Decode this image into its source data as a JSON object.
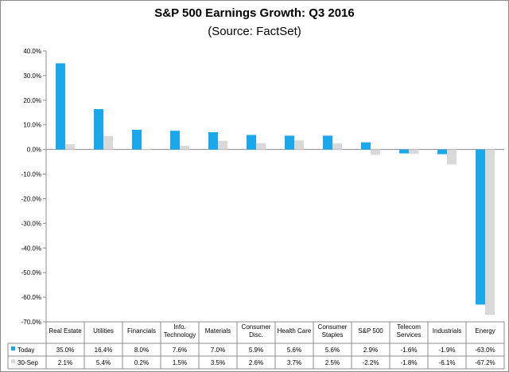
{
  "chart_data": {
    "type": "bar",
    "title": "S&P 500 Earnings Growth: Q3 2016",
    "subtitle": "(Source: FactSet)",
    "categories": [
      [
        "Real Estate"
      ],
      [
        "Utilities"
      ],
      [
        "Financials"
      ],
      [
        "Info.",
        "Technology"
      ],
      [
        "Materials"
      ],
      [
        "Consumer",
        "Disc."
      ],
      [
        "Health Care"
      ],
      [
        "Consumer",
        "Staples"
      ],
      [
        "S&P 500"
      ],
      [
        "Telecom",
        "Services"
      ],
      [
        "Industrials"
      ],
      [
        "Energy"
      ]
    ],
    "series": [
      {
        "name": "Today",
        "color": "#1aa7ec",
        "values": [
          35.0,
          16.4,
          8.0,
          7.6,
          7.0,
          5.9,
          5.6,
          5.6,
          2.9,
          -1.6,
          -1.9,
          -63.0
        ],
        "labels": [
          "35.0%",
          "16.4%",
          "8.0%",
          "7.6%",
          "7.0%",
          "5.9%",
          "5.6%",
          "5.6%",
          "2.9%",
          "-1.6%",
          "-1.9%",
          "-63.0%"
        ]
      },
      {
        "name": "30-Sep",
        "color": "#d9d9d9",
        "values": [
          2.1,
          5.4,
          0.2,
          1.5,
          3.5,
          2.6,
          3.7,
          2.5,
          -2.2,
          -1.8,
          -6.1,
          -67.2
        ],
        "labels": [
          "2.1%",
          "5.4%",
          "0.2%",
          "1.5%",
          "3.5%",
          "2.6%",
          "3.7%",
          "2.5%",
          "-2.2%",
          "-1.8%",
          "-6.1%",
          "-67.2%"
        ]
      }
    ],
    "yticks": [
      "40.0%",
      "30.0%",
      "20.0%",
      "10.0%",
      "0.0%",
      "-10.0%",
      "-20.0%",
      "-30.0%",
      "-40.0%",
      "-50.0%",
      "-60.0%",
      "-70.0%"
    ],
    "ylim": [
      -70,
      40
    ],
    "grid": false,
    "legend": "data-table"
  }
}
